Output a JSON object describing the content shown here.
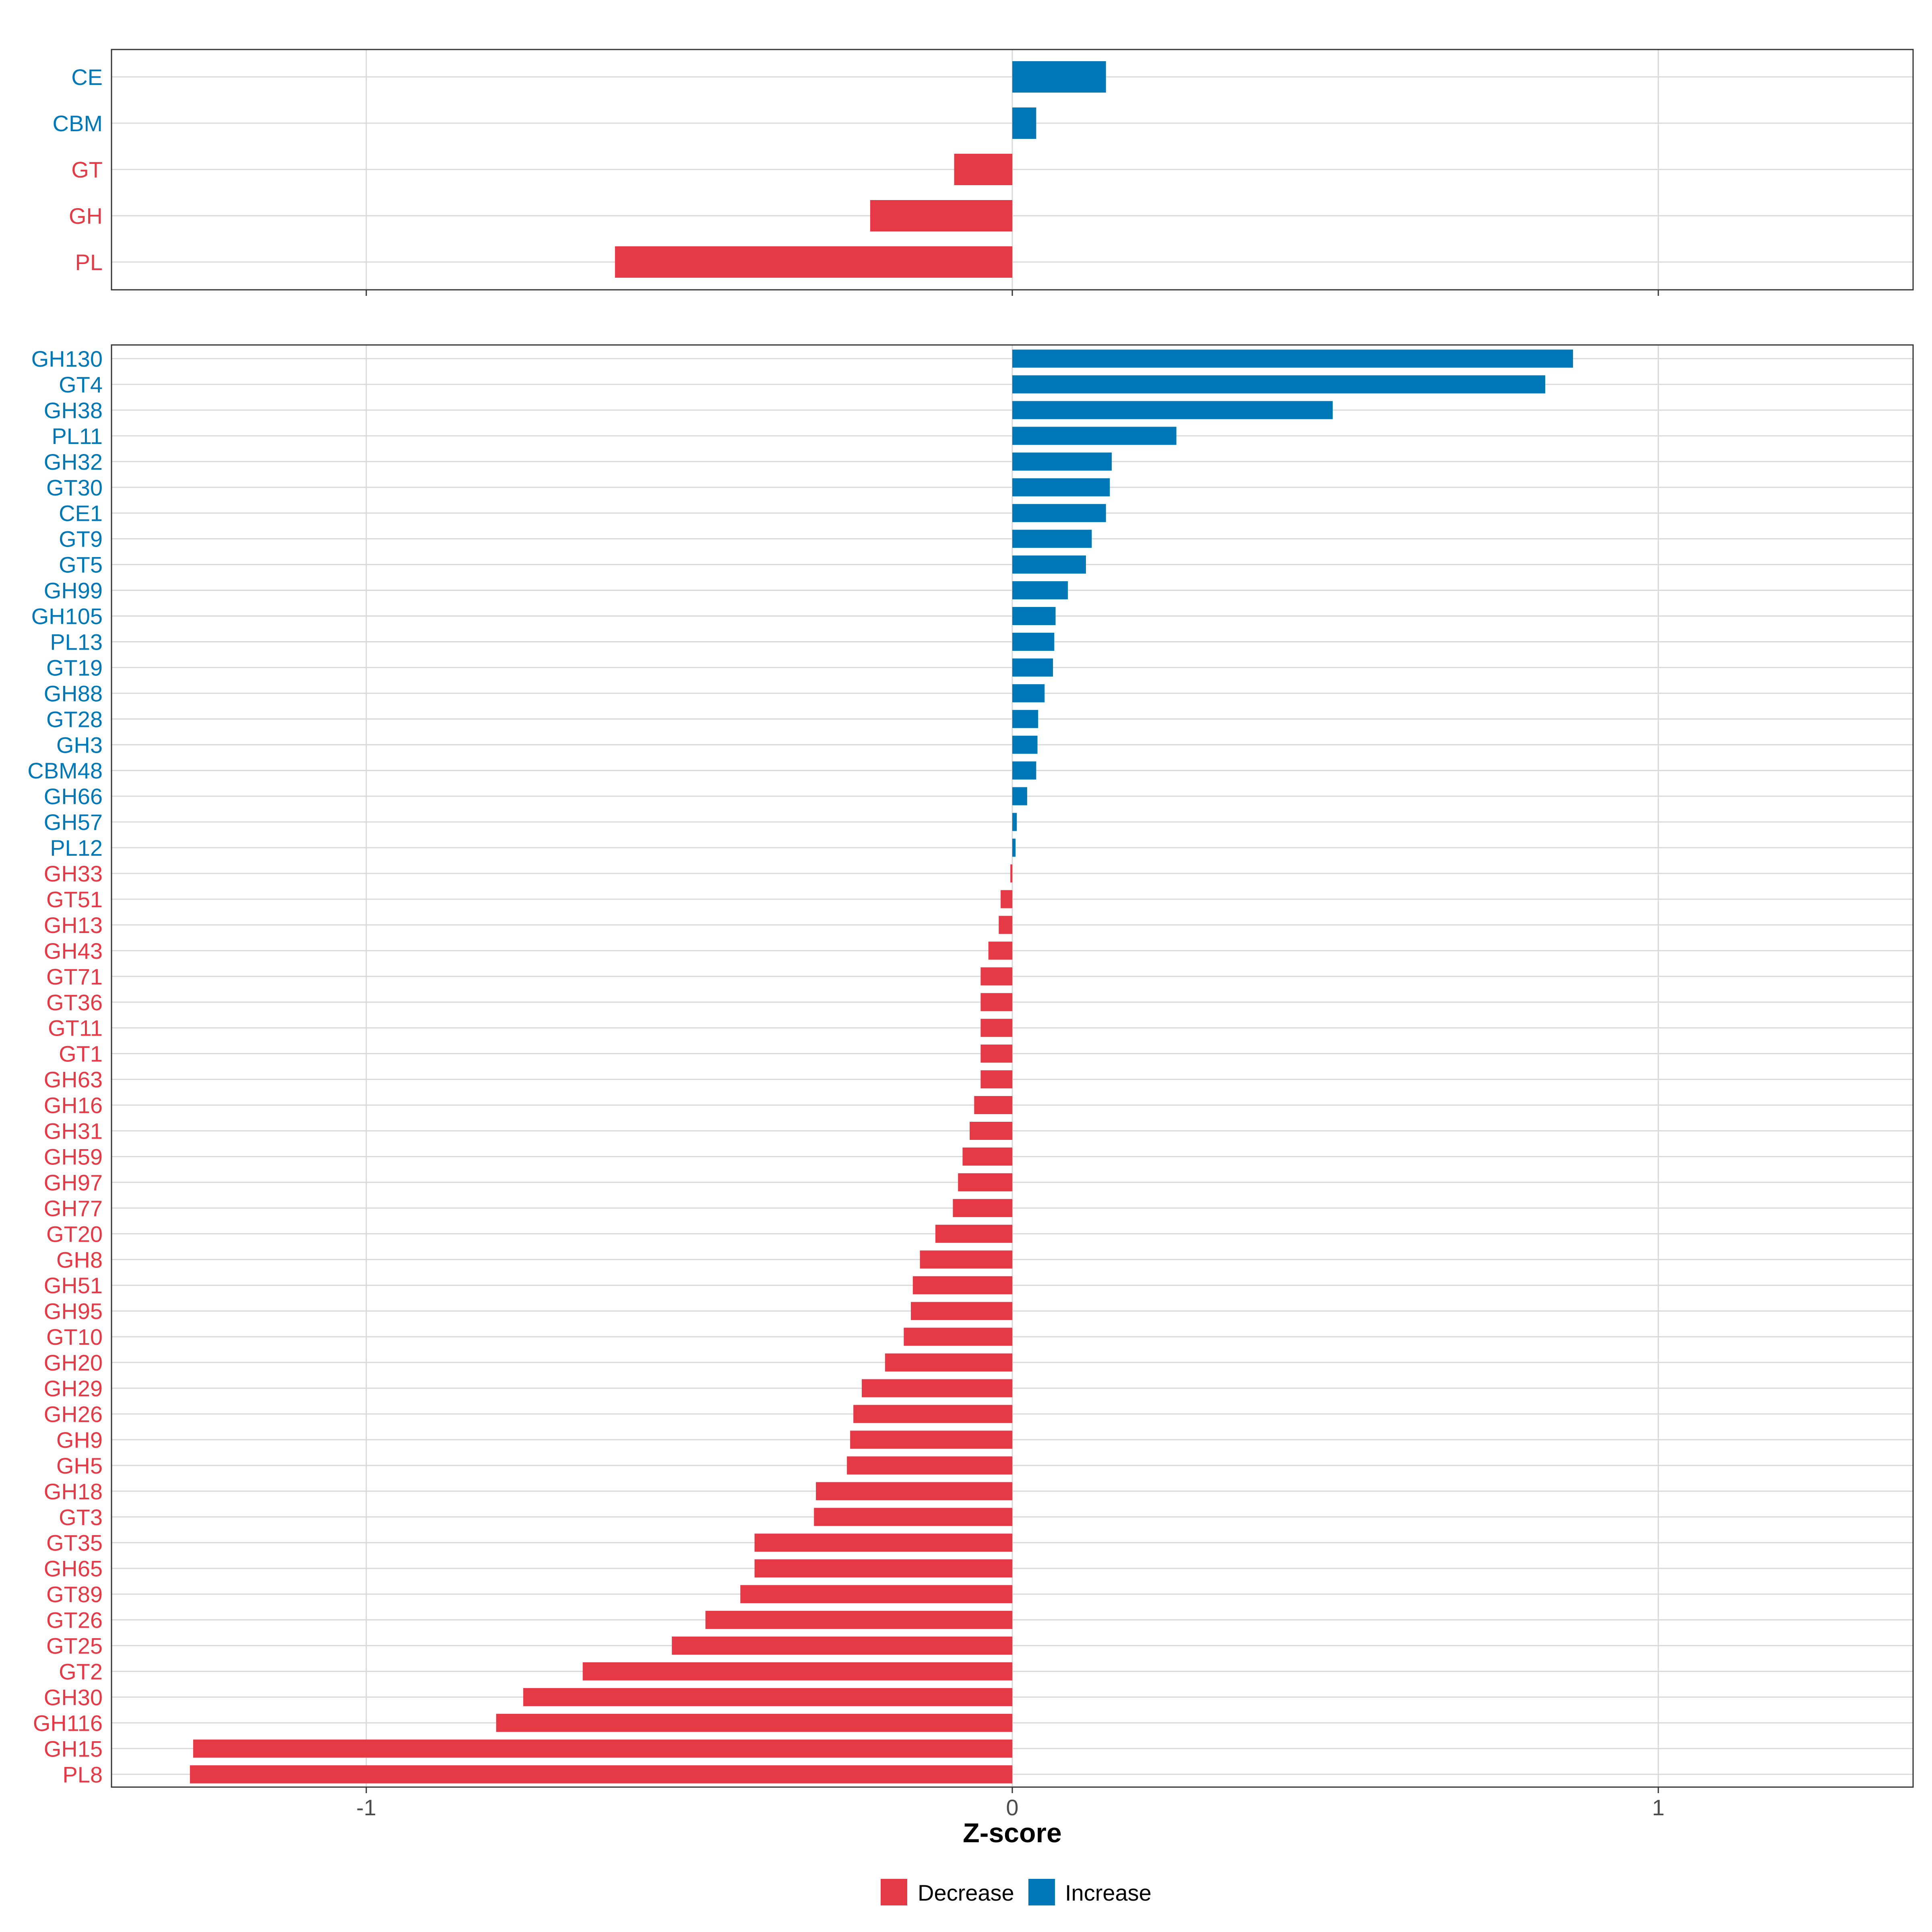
{
  "colors": {
    "decrease": "#E63946",
    "increase": "#0077B6",
    "grid": "#D9D9D9",
    "panel_border": "#333333"
  },
  "legend": {
    "items": [
      {
        "label": "Decrease",
        "color": "#E63946"
      },
      {
        "label": "Increase",
        "color": "#0077B6"
      }
    ]
  },
  "chart_data": [
    {
      "type": "bar",
      "orientation": "horizontal",
      "panel": "top",
      "categories": [
        "CE",
        "CBM",
        "GT",
        "GH",
        "PL"
      ],
      "values": [
        0.145,
        0.037,
        -0.09,
        -0.22,
        -0.615
      ],
      "xlim": [
        -1.4,
        1.4
      ],
      "xticks": [
        -1,
        0,
        1
      ]
    },
    {
      "type": "bar",
      "orientation": "horizontal",
      "panel": "bottom",
      "categories": [
        "GH130",
        "GT4",
        "GH38",
        "PL11",
        "GH32",
        "GT30",
        "CE1",
        "GT9",
        "GT5",
        "GH99",
        "GH105",
        "PL13",
        "GT19",
        "GH88",
        "GT28",
        "GH3",
        "CBM48",
        "GH66",
        "GH57",
        "PL12",
        "GH33",
        "GT51",
        "GH13",
        "GH43",
        "GT71",
        "GT36",
        "GT11",
        "GT1",
        "GH63",
        "GH16",
        "GH31",
        "GH59",
        "GH97",
        "GH77",
        "GT20",
        "GH8",
        "GH51",
        "GH95",
        "GT10",
        "GH20",
        "GH29",
        "GH26",
        "GH9",
        "GH5",
        "GH18",
        "GT3",
        "GT35",
        "GH65",
        "GT89",
        "GT26",
        "GT25",
        "GT2",
        "GH30",
        "GH116",
        "GH15",
        "PL8"
      ],
      "values": [
        0.868,
        0.825,
        0.496,
        0.254,
        0.154,
        0.151,
        0.145,
        0.123,
        0.114,
        0.086,
        0.067,
        0.065,
        0.063,
        0.05,
        0.04,
        0.039,
        0.037,
        0.023,
        0.007,
        0.005,
        -0.003,
        -0.018,
        -0.021,
        -0.037,
        -0.049,
        -0.049,
        -0.049,
        -0.049,
        -0.049,
        -0.059,
        -0.066,
        -0.077,
        -0.084,
        -0.092,
        -0.119,
        -0.143,
        -0.154,
        -0.157,
        -0.168,
        -0.197,
        -0.233,
        -0.246,
        -0.251,
        -0.256,
        -0.304,
        -0.307,
        -0.399,
        -0.399,
        -0.421,
        -0.475,
        -0.527,
        -0.665,
        -0.757,
        -0.799,
        -1.268,
        -1.273
      ],
      "xlim": [
        -1.4,
        1.4
      ],
      "xticks": [
        -1,
        0,
        1
      ],
      "xtick_labels": [
        "-1",
        "0",
        "1"
      ],
      "xlabel": "Z-score"
    }
  ]
}
